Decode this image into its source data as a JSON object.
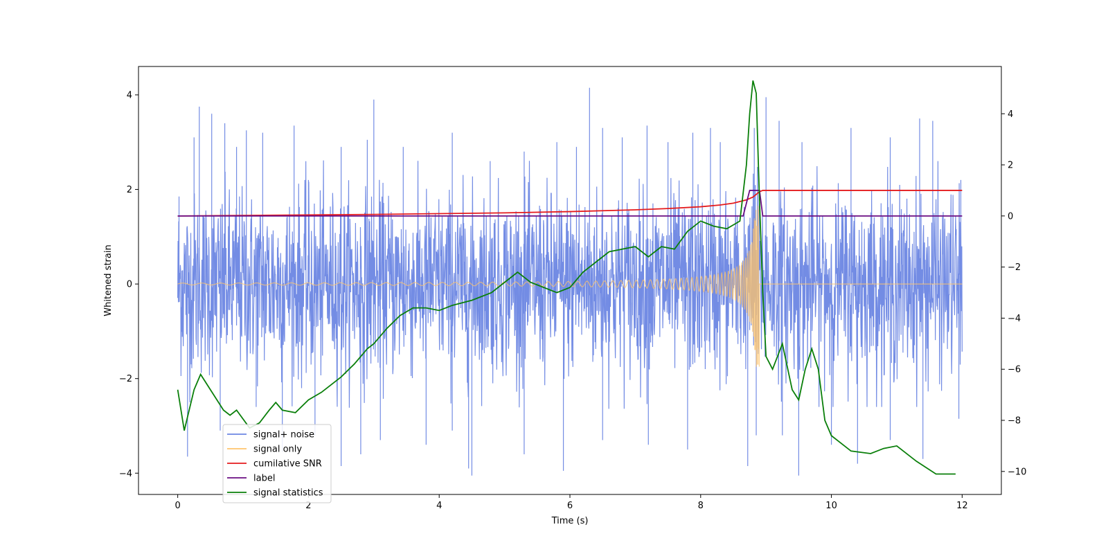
{
  "chart_data": {
    "type": "line",
    "title": "",
    "xlabel": "Time (s)",
    "ylabel": "Whitened strain",
    "y2label": "",
    "xlim": [
      -0.6,
      12.6
    ],
    "ylim": [
      -4.45,
      4.6
    ],
    "y2lim": [
      -10.9,
      5.85
    ],
    "xticks": [
      0,
      2,
      4,
      6,
      8,
      10,
      12
    ],
    "yticks": [
      -4,
      -2,
      0,
      2,
      4
    ],
    "y2ticks": [
      -10,
      -8,
      -6,
      -4,
      -2,
      0,
      2,
      4
    ],
    "grid": false,
    "legend": {
      "placement": "lower-left",
      "entries": [
        {
          "name": "signal+ noise",
          "color": "#6b86e3"
        },
        {
          "name": "signal only",
          "color": "#ffc46b"
        },
        {
          "name": "cumilative SNR",
          "color": "#e41a1c"
        },
        {
          "name": "label",
          "color": "#6a0d83"
        },
        {
          "name": "signal statistics",
          "color": "#0a7f0a"
        }
      ]
    },
    "series": [
      {
        "name": "signal+ noise",
        "axis": "left",
        "color": "#6b86e3",
        "description_note": "",
        "x_range": [
          0,
          12
        ],
        "noise_std": 0.95,
        "peaks": [
          [
            0.02,
            1.85
          ],
          [
            0.25,
            3.1
          ],
          [
            0.33,
            3.75
          ],
          [
            0.52,
            3.6
          ],
          [
            0.72,
            3.4
          ],
          [
            0.9,
            2.9
          ],
          [
            1.05,
            3.25
          ],
          [
            1.3,
            3.2
          ],
          [
            1.78,
            3.35
          ],
          [
            2.0,
            2.2
          ],
          [
            2.5,
            2.9
          ],
          [
            2.9,
            3.05
          ],
          [
            3.0,
            3.9
          ],
          [
            3.45,
            2.9
          ],
          [
            4.2,
            3.2
          ],
          [
            4.78,
            2.6
          ],
          [
            5.3,
            2.8
          ],
          [
            5.8,
            3.0
          ],
          [
            6.1,
            2.9
          ],
          [
            6.3,
            4.15
          ],
          [
            6.5,
            3.3
          ],
          [
            6.8,
            3.1
          ],
          [
            7.18,
            3.35
          ],
          [
            7.5,
            3.0
          ],
          [
            7.88,
            3.2
          ],
          [
            8.15,
            3.3
          ],
          [
            8.3,
            3.0
          ],
          [
            8.82,
            3.3
          ],
          [
            9.0,
            3.95
          ],
          [
            9.2,
            3.45
          ],
          [
            9.55,
            3.0
          ],
          [
            10.3,
            3.3
          ],
          [
            10.9,
            3.1
          ],
          [
            11.35,
            3.5
          ],
          [
            11.55,
            3.45
          ],
          [
            11.98,
            2.2
          ]
        ],
        "troughs": [
          [
            0.15,
            -3.65
          ],
          [
            0.65,
            -3.1
          ],
          [
            1.2,
            -2.6
          ],
          [
            1.6,
            -3.55
          ],
          [
            2.1,
            -3.2
          ],
          [
            2.5,
            -3.85
          ],
          [
            2.8,
            -3.6
          ],
          [
            3.1,
            -3.3
          ],
          [
            3.8,
            -3.4
          ],
          [
            4.2,
            -3.1
          ],
          [
            4.45,
            -3.9
          ],
          [
            4.5,
            -4.05
          ],
          [
            5.3,
            -3.6
          ],
          [
            5.9,
            -3.95
          ],
          [
            6.5,
            -3.3
          ],
          [
            7.2,
            -3.4
          ],
          [
            7.8,
            -3.5
          ],
          [
            8.72,
            -3.85
          ],
          [
            8.85,
            -3.2
          ],
          [
            9.25,
            -3.2
          ],
          [
            9.5,
            -4.05
          ],
          [
            10.0,
            -3.4
          ],
          [
            10.4,
            -3.8
          ],
          [
            10.9,
            -3.3
          ],
          [
            11.4,
            -3.7
          ],
          [
            11.95,
            -2.85
          ]
        ]
      },
      {
        "name": "signal only",
        "axis": "left",
        "color": "#ffc46b",
        "x_range": [
          0,
          12
        ],
        "chirp_merger_time": 8.9,
        "start_amplitude": 0.02,
        "peak_amplitude": 1.75
      },
      {
        "name": "cumilative SNR",
        "axis": "right",
        "color": "#e41a1c",
        "x": [
          0,
          1,
          2,
          3,
          4,
          5,
          6,
          7,
          7.5,
          8,
          8.3,
          8.5,
          8.7,
          8.8,
          8.9,
          8.95,
          12
        ],
        "values": [
          0.0,
          0.02,
          0.04,
          0.06,
          0.09,
          0.12,
          0.17,
          0.24,
          0.29,
          0.36,
          0.43,
          0.5,
          0.63,
          0.74,
          0.95,
          1.0,
          1.0
        ]
      },
      {
        "name": "label",
        "axis": "right",
        "color": "#6a0d83",
        "x": [
          0,
          8.65,
          8.75,
          8.9,
          8.95,
          12
        ],
        "values": [
          0,
          0,
          1,
          1,
          0,
          0
        ]
      },
      {
        "name": "signal statistics",
        "axis": "right",
        "color": "#0a7f0a",
        "x": [
          0,
          0.1,
          0.25,
          0.35,
          0.5,
          0.7,
          0.8,
          0.9,
          1.1,
          1.25,
          1.4,
          1.5,
          1.6,
          1.8,
          2.0,
          2.2,
          2.5,
          2.7,
          2.9,
          3.0,
          3.2,
          3.4,
          3.6,
          3.8,
          4.0,
          4.2,
          4.5,
          4.8,
          5.0,
          5.2,
          5.4,
          5.6,
          5.8,
          6.0,
          6.2,
          6.4,
          6.6,
          6.8,
          7.0,
          7.2,
          7.4,
          7.6,
          7.8,
          8.0,
          8.2,
          8.4,
          8.6,
          8.7,
          8.75,
          8.8,
          8.85,
          8.9,
          8.95,
          9.0,
          9.1,
          9.25,
          9.4,
          9.5,
          9.6,
          9.7,
          9.8,
          9.9,
          10.0,
          10.3,
          10.6,
          10.8,
          11.0,
          11.3,
          11.6,
          11.9
        ],
        "values": [
          -6.8,
          -8.4,
          -6.8,
          -6.2,
          -6.8,
          -7.6,
          -7.8,
          -7.6,
          -8.3,
          -8.1,
          -7.6,
          -7.3,
          -7.6,
          -7.7,
          -7.2,
          -6.9,
          -6.3,
          -5.8,
          -5.2,
          -5.0,
          -4.4,
          -3.9,
          -3.6,
          -3.6,
          -3.7,
          -3.5,
          -3.3,
          -3.0,
          -2.6,
          -2.2,
          -2.6,
          -2.8,
          -3.0,
          -2.8,
          -2.2,
          -1.8,
          -1.4,
          -1.3,
          -1.2,
          -1.6,
          -1.2,
          -1.3,
          -0.6,
          -0.2,
          -0.4,
          -0.5,
          -0.2,
          2.0,
          4.0,
          5.3,
          4.8,
          0.6,
          -3.0,
          -5.5,
          -6.0,
          -5.0,
          -6.8,
          -7.2,
          -6.0,
          -5.2,
          -6.0,
          -8.0,
          -8.6,
          -9.2,
          -9.3,
          -9.1,
          -9.0,
          -9.6,
          -10.1,
          -10.1
        ]
      }
    ]
  }
}
